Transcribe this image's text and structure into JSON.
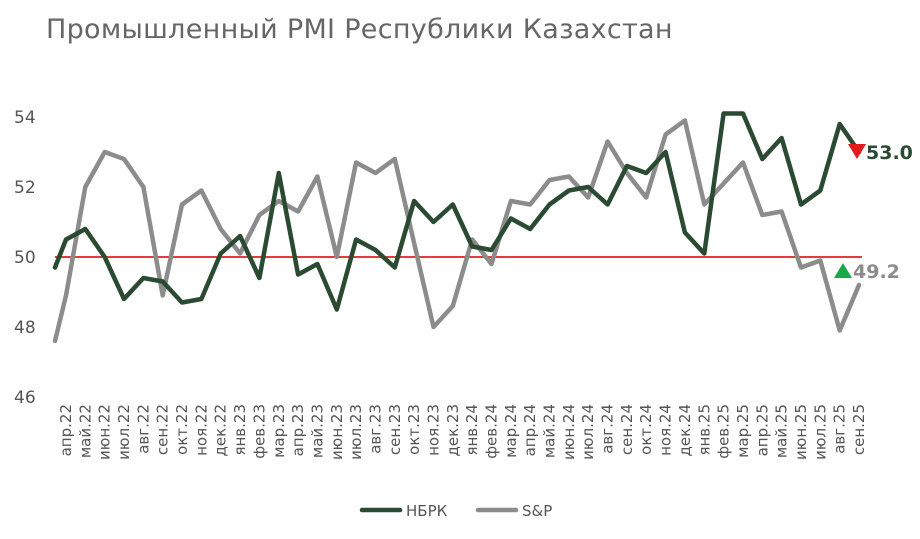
{
  "chart_data": {
    "type": "line",
    "title": "Промышленный PMI Республики Казахстан",
    "ylim": [
      46,
      55
    ],
    "yticks": [
      46,
      48,
      50,
      52,
      54
    ],
    "reference_line": 50,
    "grid": false,
    "legend_position": "bottom-center",
    "x": [
      "апр.22",
      "май.22",
      "июн.22",
      "июл.22",
      "авг.22",
      "сен.22",
      "окт.22",
      "ноя.22",
      "дек.22",
      "янв.23",
      "фев.23",
      "мар.23",
      "апр.23",
      "май.23",
      "июн.23",
      "июл.23",
      "авг.23",
      "сен.23",
      "окт.23",
      "ноя.23",
      "дек.23",
      "янв.24",
      "фев.24",
      "мар.24",
      "апр.24",
      "май.24",
      "июн.24",
      "июл.24",
      "авг.24",
      "сен.24",
      "окт.24",
      "ноя.24",
      "дек.24",
      "янв.25",
      "фев.25",
      "мар.25",
      "апр.25",
      "май.25",
      "июн.25",
      "июл.25",
      "авг.25",
      "сен.25"
    ],
    "series": [
      {
        "name": "НБРК",
        "color": "#2b4a32",
        "values": [
          50.5,
          50.8,
          50.0,
          48.8,
          49.4,
          49.3,
          48.7,
          48.8,
          50.1,
          50.6,
          49.4,
          52.4,
          49.5,
          49.8,
          48.5,
          50.5,
          50.2,
          49.7,
          51.6,
          51.0,
          51.5,
          50.3,
          50.2,
          51.1,
          50.8,
          51.5,
          51.9,
          52.0,
          51.5,
          52.6,
          52.4,
          53.0,
          50.7,
          50.1,
          54.1,
          54.1,
          52.8,
          53.4,
          51.5,
          51.9,
          53.8,
          53.0
        ],
        "start_value": 49.7,
        "end_label": "53.0",
        "end_marker": "down-triangle",
        "end_marker_color": "#e01b1b"
      },
      {
        "name": "S&P",
        "color": "#8c8c8c",
        "values": [
          48.9,
          52.0,
          53.0,
          52.8,
          52.0,
          48.9,
          51.5,
          51.9,
          50.8,
          50.1,
          51.2,
          51.6,
          51.3,
          52.3,
          50.0,
          52.7,
          52.4,
          52.8,
          50.4,
          48.0,
          48.6,
          50.5,
          49.8,
          51.6,
          51.5,
          52.2,
          52.3,
          51.7,
          53.3,
          52.4,
          51.7,
          53.5,
          53.9,
          51.5,
          52.1,
          52.7,
          51.2,
          51.3,
          49.7,
          49.9,
          47.9,
          49.2
        ],
        "start_value": 47.6,
        "end_label": "49.2",
        "end_marker": "up-triangle",
        "end_marker_color": "#1aa84a"
      }
    ],
    "reference_line_color": "#e02020"
  }
}
